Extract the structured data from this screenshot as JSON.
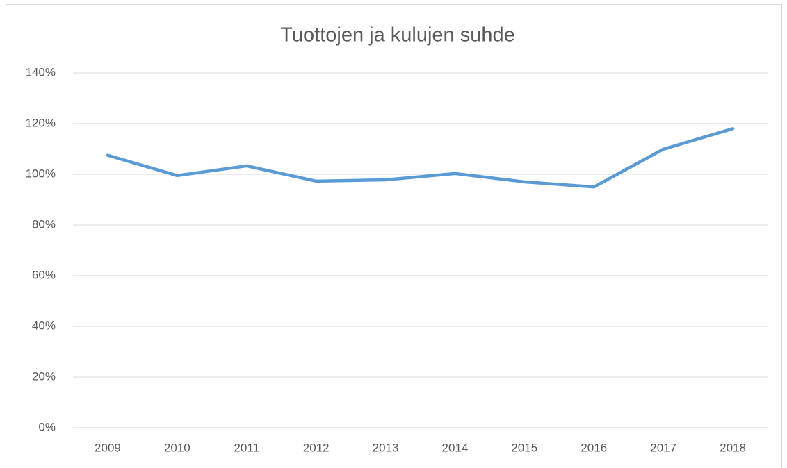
{
  "chart_data": {
    "type": "line",
    "title": "Tuottojen ja kulujen suhde",
    "categories": [
      "2009",
      "2010",
      "2011",
      "2012",
      "2013",
      "2014",
      "2015",
      "2016",
      "2017",
      "2018"
    ],
    "series": [
      {
        "name": "Tuottojen ja kulujen suhde",
        "color": "#5b9bd5",
        "values": [
          107.5,
          99.5,
          103.3,
          97.3,
          97.8,
          100.3,
          97,
          95,
          109.9,
          118
        ]
      }
    ],
    "ylim": [
      0,
      140
    ],
    "yticks": [
      {
        "value": 0,
        "label": "0%"
      },
      {
        "value": 20,
        "label": "20%"
      },
      {
        "value": 40,
        "label": "40%"
      },
      {
        "value": 60,
        "label": "60%"
      },
      {
        "value": 80,
        "label": "80%"
      },
      {
        "value": 100,
        "label": "100%"
      },
      {
        "value": 120,
        "label": "120%"
      },
      {
        "value": 140,
        "label": "140%"
      }
    ],
    "grid": true
  }
}
